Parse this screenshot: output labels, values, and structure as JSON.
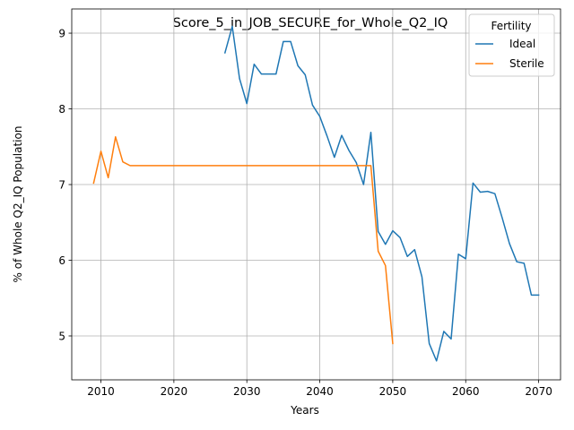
{
  "chart_data": {
    "type": "line",
    "title": "Score_5_in_JOB_SECURE_for_Whole_Q2_IQ",
    "xlabel": "Years",
    "ylabel": "% of Whole Q2_IQ Population",
    "xlim": [
      2006,
      2073
    ],
    "ylim": [
      4.42,
      9.32
    ],
    "xticks": [
      2010,
      2020,
      2030,
      2040,
      2050,
      2060,
      2070
    ],
    "yticks": [
      5,
      6,
      7,
      8,
      9
    ],
    "grid": true,
    "legend": {
      "title": "Fertility",
      "placement": "top-right"
    },
    "series": [
      {
        "name": "Ideal",
        "color": "#1f77b4",
        "x": [
          2027,
          2028,
          2029,
          2030,
          2031,
          2032,
          2033,
          2034,
          2035,
          2036,
          2037,
          2038,
          2039,
          2040,
          2041,
          2042,
          2043,
          2044,
          2045,
          2046,
          2047,
          2048,
          2049,
          2050,
          2051,
          2052,
          2053,
          2054,
          2055,
          2056,
          2057,
          2058,
          2059,
          2060,
          2061,
          2062,
          2063,
          2064,
          2065,
          2066,
          2067,
          2068,
          2069,
          2070
        ],
        "y": [
          8.74,
          9.09,
          8.4,
          8.07,
          8.59,
          8.46,
          8.46,
          8.46,
          8.89,
          8.89,
          8.57,
          8.45,
          8.05,
          7.9,
          7.64,
          7.36,
          7.65,
          7.45,
          7.29,
          7.0,
          7.69,
          6.38,
          6.21,
          6.39,
          6.3,
          6.05,
          6.14,
          5.78,
          4.9,
          4.67,
          5.06,
          4.96,
          6.08,
          6.02,
          7.02,
          6.9,
          6.91,
          6.88,
          6.56,
          6.22,
          5.98,
          5.96,
          5.54,
          5.54
        ]
      },
      {
        "name": "Sterile",
        "color": "#ff7f0e",
        "x": [
          2009,
          2010,
          2011,
          2012,
          2013,
          2014,
          2015,
          2016,
          2017,
          2018,
          2019,
          2020,
          2021,
          2022,
          2023,
          2024,
          2025,
          2026,
          2027,
          2028,
          2029,
          2030,
          2031,
          2032,
          2033,
          2034,
          2035,
          2036,
          2037,
          2038,
          2039,
          2040,
          2041,
          2042,
          2043,
          2044,
          2045,
          2046,
          2047,
          2048,
          2049,
          2050
        ],
        "y": [
          7.02,
          7.44,
          7.09,
          7.63,
          7.3,
          7.25,
          7.25,
          7.25,
          7.25,
          7.25,
          7.25,
          7.25,
          7.25,
          7.25,
          7.25,
          7.25,
          7.25,
          7.25,
          7.25,
          7.25,
          7.25,
          7.25,
          7.25,
          7.25,
          7.25,
          7.25,
          7.25,
          7.25,
          7.25,
          7.25,
          7.25,
          7.25,
          7.25,
          7.25,
          7.25,
          7.25,
          7.25,
          7.25,
          7.25,
          6.12,
          5.93,
          4.9
        ]
      }
    ]
  }
}
